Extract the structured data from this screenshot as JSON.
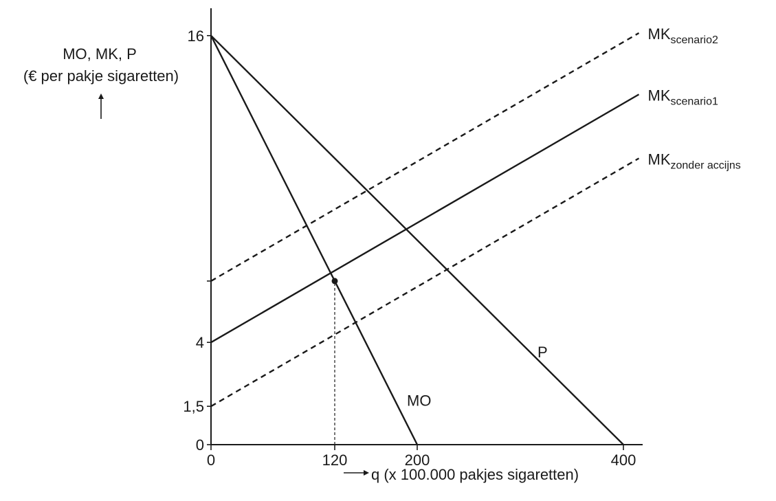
{
  "chart_data": {
    "type": "line",
    "ylabel_line1": "MO, MK, P",
    "ylabel_line2": "(€ per pakje sigaretten)",
    "xlabel": "q (x 100.000 pakjes sigaretten)",
    "xlim": [
      0,
      420
    ],
    "ylim": [
      0,
      17.2
    ],
    "x_ticks": [
      {
        "value": 0,
        "label": "0"
      },
      {
        "value": 120,
        "label": "120"
      },
      {
        "value": 200,
        "label": "200"
      },
      {
        "value": 400,
        "label": "400"
      }
    ],
    "y_ticks": [
      {
        "value": 0,
        "label": "0"
      },
      {
        "value": 1.5,
        "label": "1,5"
      },
      {
        "value": 4,
        "label": "4"
      },
      {
        "value": 6.4,
        "label": ""
      },
      {
        "value": 16,
        "label": "16"
      }
    ],
    "series": [
      {
        "name": "MO",
        "style": "solid",
        "points": [
          [
            0,
            16
          ],
          [
            200,
            0
          ]
        ]
      },
      {
        "name": "P",
        "style": "solid",
        "points": [
          [
            0,
            16
          ],
          [
            400,
            0
          ]
        ]
      },
      {
        "name": "MK",
        "subscript": "scenario1",
        "style": "solid",
        "points": [
          [
            0,
            4
          ],
          [
            415,
            13.7
          ]
        ]
      },
      {
        "name": "MK",
        "subscript": "scenario2",
        "style": "dashed",
        "points": [
          [
            0,
            6.4
          ],
          [
            415,
            16.1
          ]
        ]
      },
      {
        "name": "MK",
        "subscript": "zonder accijns",
        "style": "dashed",
        "points": [
          [
            0,
            1.5
          ],
          [
            415,
            11.2
          ]
        ]
      }
    ],
    "marker": {
      "x": 120,
      "y": 6.4
    },
    "guide_lines": [
      {
        "points": [
          [
            120,
            0
          ],
          [
            120,
            6.4
          ]
        ],
        "style": "dotted"
      }
    ],
    "colors": {
      "ink": "#1a1a1a"
    }
  }
}
